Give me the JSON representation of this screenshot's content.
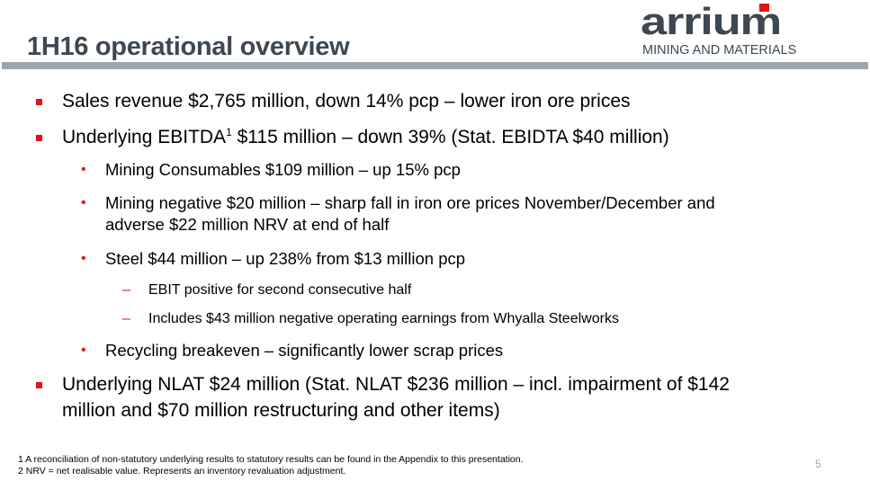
{
  "slide": {
    "title": "1H16 operational overview",
    "page_number": "5"
  },
  "logo": {
    "word": "arrium",
    "tagline": "MINING AND MATERIALS",
    "accent": "#e3121b",
    "brand": "#3d4852"
  },
  "bullets": [
    {
      "text": "Sales revenue $2,765 million, down 14% pcp – lower iron ore prices"
    },
    {
      "pre": "Underlying EBITDA",
      "sup": "1",
      "post": " $115 million – down 39% (Stat. EBIDTA $40 million)"
    },
    {
      "text": "Mining Consumables $109 million – up 15% pcp"
    },
    {
      "line1": "Mining negative $20 million – sharp fall in iron ore prices November/December and",
      "line2": "adverse $22 million NRV at end of half"
    },
    {
      "text": "Steel $44 million – up 238% from $13 million pcp"
    },
    {
      "text": "EBIT positive for second consecutive half"
    },
    {
      "text": "Includes $43 million negative operating earnings from Whyalla Steelworks"
    },
    {
      "text": "Recycling breakeven – significantly lower scrap prices"
    },
    {
      "line1": "Underlying NLAT $24 million (Stat. NLAT $236 million – incl. impairment of $142",
      "line2": "million and $70 million restructuring and other items)"
    }
  ],
  "footnotes": [
    "1 A reconciliation of non-statutory underlying results to statutory results can be found in the Appendix to this presentation.",
    "2 NRV = net realisable value.  Represents an inventory revaluation adjustment."
  ]
}
